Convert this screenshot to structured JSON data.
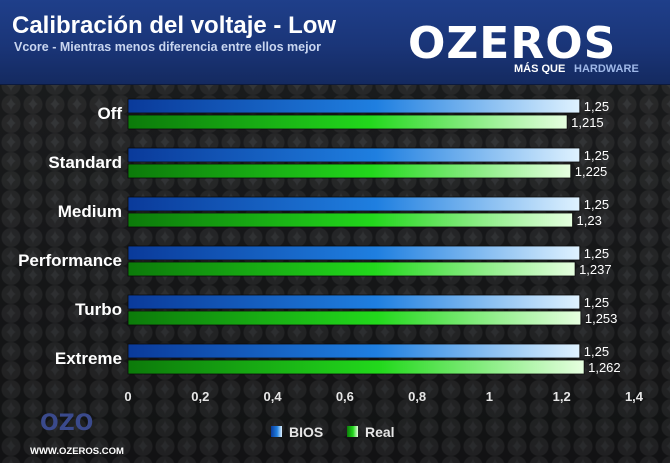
{
  "header": {
    "title": "Calibración del voltaje - Low",
    "subtitle": "Vcore - Mientras menos diferencia entre ellos mejor"
  },
  "logo": {
    "name": "OZEROS",
    "tagline_a": "MÁS QUE",
    "tagline_b": "HARDWARE"
  },
  "footer": {
    "url": "WWW.OZEROS.COM"
  },
  "chart_data": {
    "type": "bar",
    "orientation": "horizontal",
    "categories": [
      "Off",
      "Standard",
      "Medium",
      "Performance",
      "Turbo",
      "Extreme"
    ],
    "series": [
      {
        "name": "BIOS",
        "color": "#1f7fe0",
        "values": [
          1.25,
          1.25,
          1.25,
          1.25,
          1.25,
          1.25
        ],
        "labels": [
          "1,25",
          "1,25",
          "1,25",
          "1,25",
          "1,25",
          "1,25"
        ]
      },
      {
        "name": "Real",
        "color": "#22d81c",
        "values": [
          1.215,
          1.225,
          1.23,
          1.237,
          1.253,
          1.262
        ],
        "labels": [
          "1,215",
          "1,225",
          "1,23",
          "1,237",
          "1,253",
          "1,262"
        ]
      }
    ],
    "xlim": [
      0,
      1.4
    ],
    "ticks": [
      0,
      0.2,
      0.4,
      0.6,
      0.8,
      1,
      1.2,
      1.4
    ],
    "tick_labels": [
      "0",
      "0,2",
      "0,4",
      "0,6",
      "0,8",
      "1",
      "1,2",
      "1,4"
    ],
    "grid": false,
    "legend_position": "bottom"
  }
}
